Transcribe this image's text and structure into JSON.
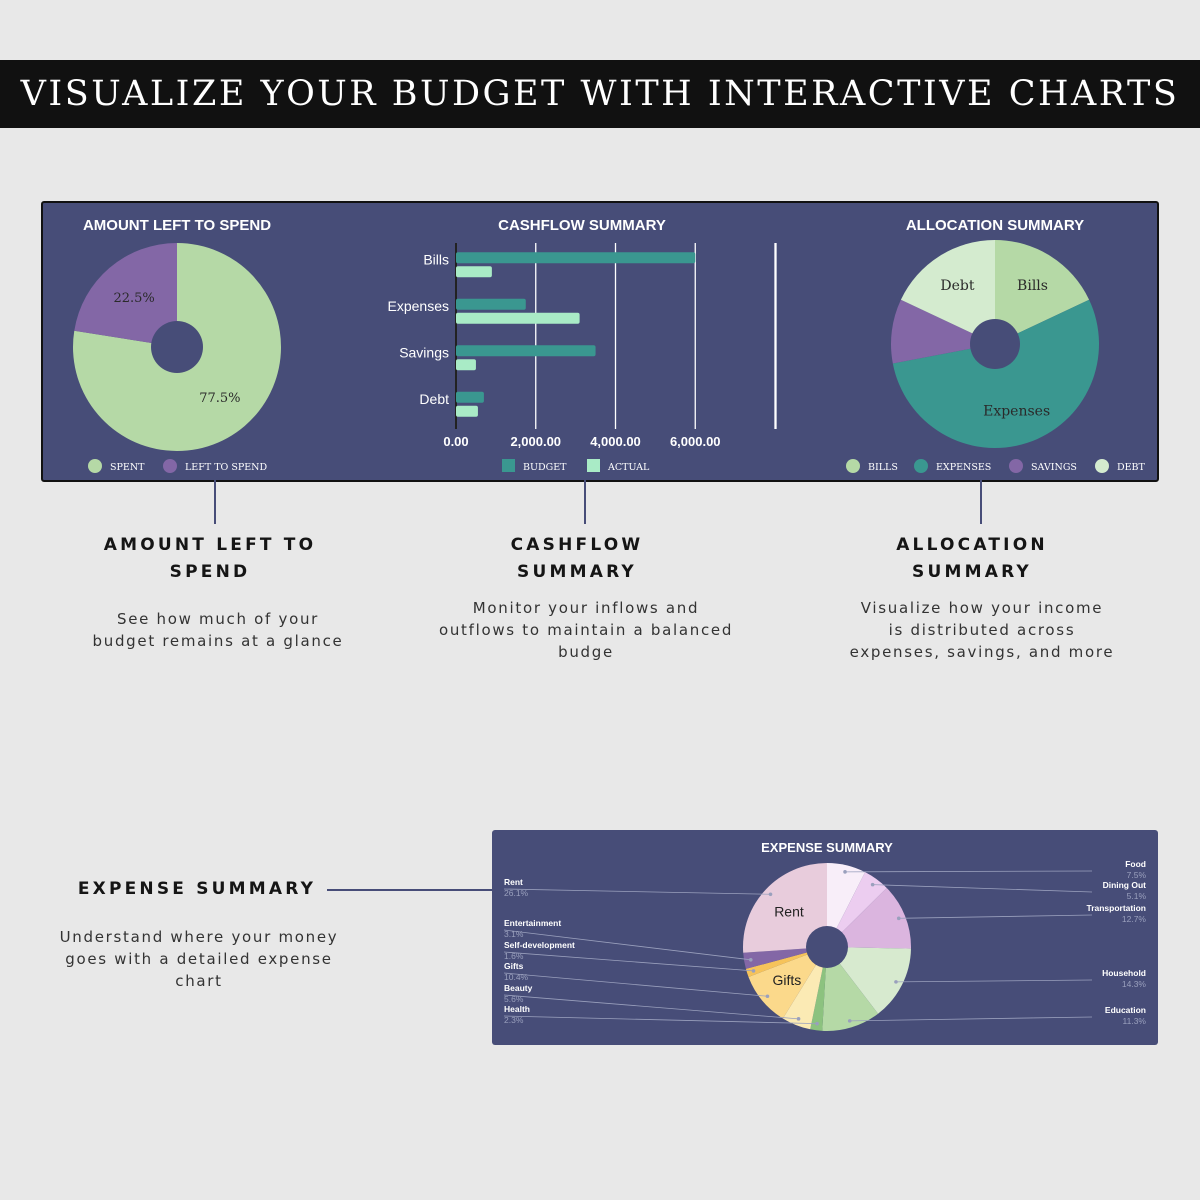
{
  "banner": {
    "title": "VISUALIZE YOUR BUDGET WITH INTERACTIVE CHARTS"
  },
  "colors": {
    "panel": "#474d78",
    "spent": "#b5d9a6",
    "left_to_spend": "#8367a6",
    "budget": "#3a9790",
    "actual": "#a9ebc6",
    "bills": "#b5d9a6",
    "expenses": "#3a9790",
    "savings": "#8367a6",
    "debt": "#d4ebcf"
  },
  "features": [
    {
      "title_line1": "AMOUNT LEFT TO",
      "title_line2": "SPEND",
      "desc_line1": "See how much of your",
      "desc_line2": "budget remains at a glance",
      "desc_line3": ""
    },
    {
      "title_line1": "CASHFLOW",
      "title_line2": "SUMMARY",
      "desc_line1": "Monitor your inflows and",
      "desc_line2": "outflows to maintain a balanced",
      "desc_line3": "budge"
    },
    {
      "title_line1": "ALLOCATION",
      "title_line2": "SUMMARY",
      "desc_line1": "Visualize how your income",
      "desc_line2": "is distributed across",
      "desc_line3": "expenses, savings, and more"
    },
    {
      "title_line1": "EXPENSE SUMMARY",
      "title_line2": "",
      "desc_line1": "Understand where your money",
      "desc_line2": "goes with a detailed expense",
      "desc_line3": "chart"
    }
  ],
  "chart_data": [
    {
      "type": "pie",
      "title": "AMOUNT LEFT TO SPEND",
      "categories": [
        "SPENT",
        "LEFT TO SPEND"
      ],
      "values": [
        77.5,
        22.5
      ],
      "labels": [
        "77.5%",
        "22.5%"
      ],
      "colors": [
        "#b5d9a6",
        "#8367a6"
      ],
      "legend": "bottom"
    },
    {
      "type": "bar",
      "orientation": "horizontal",
      "title": "CASHFLOW SUMMARY",
      "categories": [
        "Bills",
        "Expenses",
        "Savings",
        "Debt"
      ],
      "series": [
        {
          "name": "BUDGET",
          "values": [
            6000,
            1750,
            3500,
            700
          ],
          "color": "#3a9790"
        },
        {
          "name": "ACTUAL",
          "values": [
            900,
            3100,
            500,
            550
          ],
          "color": "#a9ebc6"
        }
      ],
      "xlim": [
        0,
        8000
      ],
      "ticks": [
        0,
        2000,
        4000,
        6000,
        8000
      ],
      "tick_labels": [
        "0.00",
        "2,000.00",
        "4,000.00",
        "6,000.00"
      ],
      "grid": true,
      "legend": "bottom"
    },
    {
      "type": "pie",
      "title": "ALLOCATION SUMMARY",
      "categories": [
        "BILLS",
        "EXPENSES",
        "SAVINGS",
        "DEBT"
      ],
      "values": [
        18,
        54,
        10,
        18
      ],
      "slice_labels": [
        "Bills",
        "Expenses",
        "",
        "Debt"
      ],
      "colors": [
        "#b5d9a6",
        "#3a9790",
        "#8367a6",
        "#d4ebcf"
      ],
      "legend": "bottom"
    },
    {
      "type": "pie",
      "title": "EXPENSE SUMMARY",
      "categories": [
        "Food",
        "Dining Out",
        "Transportation",
        "Household",
        "Education",
        "Health",
        "Beauty",
        "Gifts",
        "Self-development",
        "Entertainment",
        "Rent"
      ],
      "values": [
        7.5,
        5.1,
        12.7,
        14.3,
        11.3,
        2.3,
        5.6,
        10.4,
        1.6,
        3.1,
        26.1
      ],
      "percent_labels": [
        "7.5%",
        "5.1%",
        "12.7%",
        "14.3%",
        "11.3%",
        "2.3%",
        "5.6%",
        "10.4%",
        "1.6%",
        "3.1%",
        "26.1%"
      ],
      "slice_labels": [
        "",
        "",
        "",
        "",
        "",
        "",
        "",
        "Gifts",
        "",
        "",
        "Rent"
      ],
      "colors": [
        "#f8eef9",
        "#eccdf0",
        "#dbb5df",
        "#d7eacf",
        "#b5d9a6",
        "#8cc27f",
        "#fbeab4",
        "#fbd98b",
        "#f6c35a",
        "#8367a6",
        "#e8ccdc"
      ],
      "legend": "callouts"
    }
  ]
}
